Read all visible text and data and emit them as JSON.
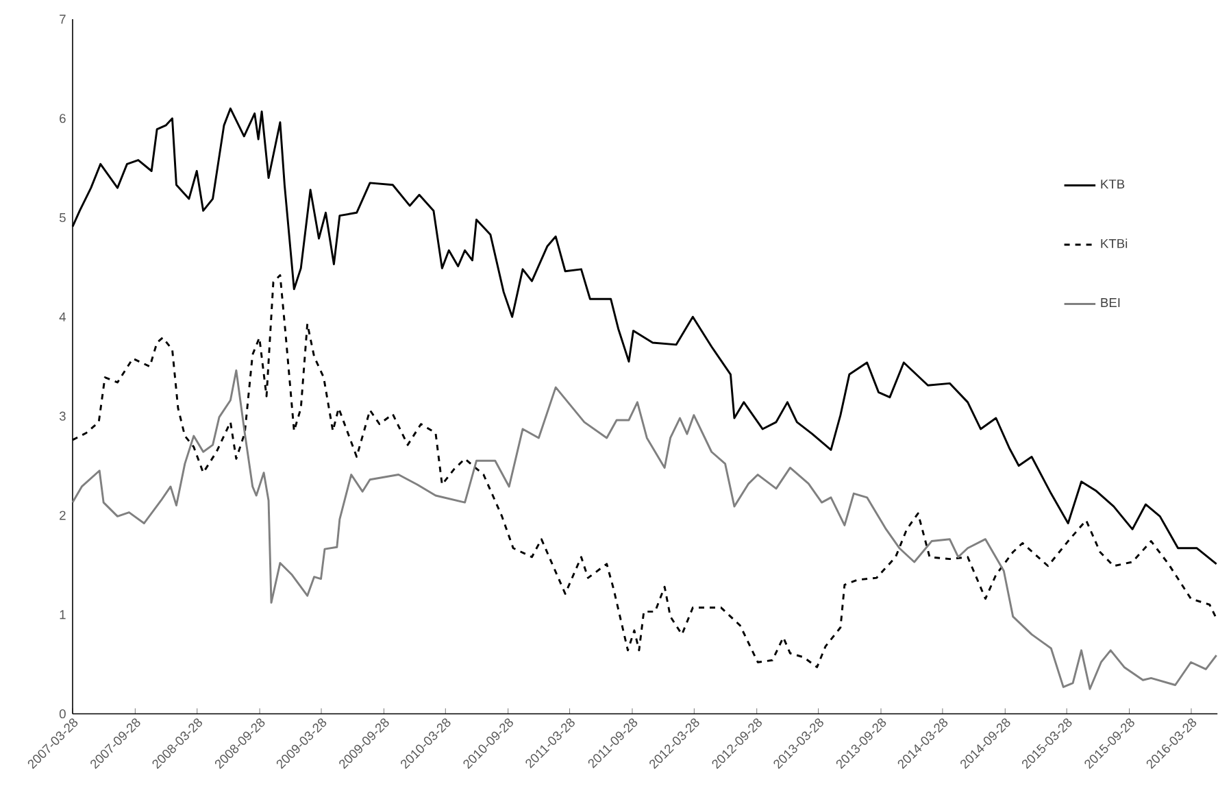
{
  "chart_data": {
    "type": "line",
    "xlim": [
      "2007-03-28",
      "2016-06-13"
    ],
    "ylim": [
      0,
      7
    ],
    "yticks": [
      0,
      1,
      2,
      3,
      4,
      5,
      6,
      7
    ],
    "xticks": [
      "2007-03-28",
      "2007-09-28",
      "2008-03-28",
      "2008-09-28",
      "2009-03-28",
      "2009-09-28",
      "2010-03-28",
      "2010-09-28",
      "2011-03-28",
      "2011-09-28",
      "2012-03-28",
      "2012-09-28",
      "2013-03-28",
      "2013-09-28",
      "2014-03-28",
      "2014-09-28",
      "2015-03-28",
      "2015-09-28",
      "2016-03-28"
    ],
    "legend": "top right",
    "grid": false,
    "marker": "none",
    "series": [
      {
        "name": "KTB",
        "color": "#000000",
        "line_style": "solid",
        "x": [
          "2007-03-28",
          "2007-04-18",
          "2007-05-21",
          "2007-06-18",
          "2007-08-07",
          "2007-09-04",
          "2007-10-07",
          "2007-11-15",
          "2007-12-01",
          "2007-12-27",
          "2008-01-15",
          "2008-01-27",
          "2008-03-04",
          "2008-03-27",
          "2008-04-15",
          "2008-05-13",
          "2008-06-15",
          "2008-07-04",
          "2008-08-13",
          "2008-09-13",
          "2008-09-24",
          "2008-10-04",
          "2008-10-24",
          "2008-11-27",
          "2008-12-10",
          "2009-01-07",
          "2009-01-27",
          "2009-02-24",
          "2009-03-21",
          "2009-04-10",
          "2009-05-04",
          "2009-05-21",
          "2009-07-10",
          "2009-08-18",
          "2009-10-24",
          "2009-12-13",
          "2010-01-10",
          "2010-02-21",
          "2010-03-18",
          "2010-04-07",
          "2010-05-04",
          "2010-05-24",
          "2010-06-15",
          "2010-06-27",
          "2010-08-07",
          "2010-09-15",
          "2010-10-10",
          "2010-11-10",
          "2010-12-07",
          "2011-01-21",
          "2011-02-15",
          "2011-03-15",
          "2011-05-01",
          "2011-05-27",
          "2011-07-27",
          "2011-08-18",
          "2011-09-18",
          "2011-10-01",
          "2011-11-27",
          "2012-02-04",
          "2012-03-24",
          "2012-05-18",
          "2012-07-13",
          "2012-07-24",
          "2012-08-21",
          "2012-10-15",
          "2012-11-24",
          "2012-12-27",
          "2013-01-24",
          "2013-03-10",
          "2013-05-04",
          "2013-06-01",
          "2013-06-27",
          "2013-08-18",
          "2013-09-21",
          "2013-10-24",
          "2013-12-04",
          "2014-02-13",
          "2014-04-18",
          "2014-06-10",
          "2014-07-18",
          "2014-09-01",
          "2014-10-10",
          "2014-11-07",
          "2014-12-15",
          "2015-02-10",
          "2015-04-01",
          "2015-05-10",
          "2015-06-21",
          "2015-08-13",
          "2015-10-07",
          "2015-11-15",
          "2015-12-27",
          "2016-02-18",
          "2016-04-13",
          "2016-06-10"
        ],
        "values": [
          4.91,
          5.07,
          5.3,
          5.54,
          5.3,
          5.54,
          5.58,
          5.47,
          5.89,
          5.93,
          6.0,
          5.33,
          5.19,
          5.47,
          5.07,
          5.19,
          5.93,
          6.1,
          5.82,
          6.05,
          5.79,
          6.07,
          5.4,
          5.96,
          5.33,
          4.28,
          4.49,
          5.28,
          4.79,
          5.05,
          4.53,
          5.02,
          5.05,
          5.35,
          5.33,
          5.12,
          5.23,
          5.07,
          4.49,
          4.67,
          4.51,
          4.67,
          4.57,
          4.98,
          4.83,
          4.25,
          4.0,
          4.48,
          4.36,
          4.71,
          4.81,
          4.46,
          4.48,
          4.18,
          4.18,
          3.88,
          3.55,
          3.86,
          3.74,
          3.72,
          4.0,
          3.7,
          3.42,
          2.98,
          3.14,
          2.87,
          2.94,
          3.14,
          2.94,
          2.82,
          2.66,
          3.01,
          3.42,
          3.54,
          3.24,
          3.19,
          3.54,
          3.31,
          3.33,
          3.14,
          2.87,
          2.98,
          2.68,
          2.5,
          2.59,
          2.22,
          1.92,
          2.34,
          2.25,
          2.09,
          1.86,
          2.11,
          1.99,
          1.67,
          1.67,
          1.51
        ]
      },
      {
        "name": "KTBi",
        "color": "#000000",
        "line_style": "dashed",
        "x": [
          "2007-03-28",
          "2007-05-07",
          "2007-06-13",
          "2007-07-01",
          "2007-08-07",
          "2007-09-21",
          "2007-11-10",
          "2007-12-01",
          "2007-12-18",
          "2008-01-15",
          "2008-02-01",
          "2008-02-21",
          "2008-03-18",
          "2008-04-15",
          "2008-05-24",
          "2008-07-04",
          "2008-07-21",
          "2008-08-15",
          "2008-09-07",
          "2008-09-27",
          "2008-10-18",
          "2008-11-07",
          "2008-11-27",
          "2008-12-13",
          "2009-01-07",
          "2009-01-27",
          "2009-02-15",
          "2009-03-07",
          "2009-04-04",
          "2009-05-01",
          "2009-05-18",
          "2009-07-10",
          "2009-08-18",
          "2009-09-15",
          "2009-10-24",
          "2009-12-07",
          "2010-01-15",
          "2010-02-27",
          "2010-03-18",
          "2010-04-21",
          "2010-05-24",
          "2010-07-18",
          "2010-09-10",
          "2010-10-13",
          "2010-12-07",
          "2011-01-04",
          "2011-03-15",
          "2011-05-01",
          "2011-05-21",
          "2011-07-15",
          "2011-08-04",
          "2011-09-15",
          "2011-10-04",
          "2011-10-18",
          "2011-11-01",
          "2011-12-04",
          "2012-01-01",
          "2012-01-18",
          "2012-02-21",
          "2012-03-24",
          "2012-06-15",
          "2012-08-10",
          "2012-10-01",
          "2012-11-13",
          "2012-12-15",
          "2013-01-04",
          "2013-02-13",
          "2013-03-24",
          "2013-04-18",
          "2013-06-01",
          "2013-06-13",
          "2013-07-21",
          "2013-09-15",
          "2013-11-10",
          "2013-12-13",
          "2014-01-15",
          "2014-02-18",
          "2014-04-18",
          "2014-06-10",
          "2014-08-01",
          "2014-09-01",
          "2014-10-21",
          "2014-11-18",
          "2015-02-01",
          "2015-04-01",
          "2015-05-24",
          "2015-07-04",
          "2015-08-13",
          "2015-10-07",
          "2015-12-01",
          "2016-01-21",
          "2016-02-24",
          "2016-03-27",
          "2016-05-21",
          "2016-06-10"
        ],
        "values": [
          2.76,
          2.83,
          2.94,
          3.39,
          3.34,
          3.58,
          3.5,
          3.74,
          3.79,
          3.67,
          3.08,
          2.8,
          2.69,
          2.43,
          2.64,
          2.94,
          2.57,
          2.83,
          3.62,
          3.79,
          3.2,
          4.35,
          4.42,
          3.83,
          2.85,
          3.08,
          3.93,
          3.6,
          3.39,
          2.85,
          3.08,
          2.59,
          3.06,
          2.92,
          3.02,
          2.71,
          2.92,
          2.83,
          2.31,
          2.46,
          2.57,
          2.41,
          1.99,
          1.67,
          1.58,
          1.76,
          1.21,
          1.58,
          1.37,
          1.51,
          1.26,
          0.64,
          0.84,
          0.64,
          1.03,
          1.03,
          1.28,
          0.98,
          0.8,
          1.07,
          1.07,
          0.89,
          0.52,
          0.54,
          0.77,
          0.61,
          0.57,
          0.47,
          0.68,
          0.87,
          1.3,
          1.35,
          1.37,
          1.58,
          1.86,
          2.02,
          1.58,
          1.56,
          1.58,
          1.16,
          1.4,
          1.63,
          1.72,
          1.49,
          1.74,
          1.95,
          1.63,
          1.49,
          1.53,
          1.74,
          1.51,
          1.33,
          1.16,
          1.1,
          0.96
        ]
      },
      {
        "name": "BEI",
        "color": "#808080",
        "line_style": "solid",
        "x": [
          "2007-03-28",
          "2007-04-24",
          "2007-06-15",
          "2007-06-27",
          "2007-08-07",
          "2007-09-10",
          "2007-10-24",
          "2007-12-13",
          "2008-01-10",
          "2008-01-27",
          "2008-02-21",
          "2008-03-18",
          "2008-04-15",
          "2008-05-13",
          "2008-06-01",
          "2008-07-04",
          "2008-07-21",
          "2008-08-15",
          "2008-09-07",
          "2008-09-18",
          "2008-10-10",
          "2008-10-24",
          "2008-11-01",
          "2008-11-27",
          "2009-01-01",
          "2009-02-15",
          "2009-03-07",
          "2009-03-27",
          "2009-04-07",
          "2009-05-13",
          "2009-05-21",
          "2009-06-24",
          "2009-07-27",
          "2009-08-18",
          "2009-11-10",
          "2010-01-04",
          "2010-02-27",
          "2010-05-24",
          "2010-06-27",
          "2010-08-21",
          "2010-10-01",
          "2010-11-10",
          "2010-12-27",
          "2011-02-15",
          "2011-05-10",
          "2011-07-15",
          "2011-08-13",
          "2011-09-18",
          "2011-10-13",
          "2011-11-10",
          "2012-01-01",
          "2012-01-18",
          "2012-02-15",
          "2012-03-07",
          "2012-03-27",
          "2012-05-18",
          "2012-06-27",
          "2012-07-24",
          "2012-09-04",
          "2012-10-01",
          "2012-11-24",
          "2013-01-04",
          "2013-02-27",
          "2013-04-07",
          "2013-05-04",
          "2013-06-13",
          "2013-07-10",
          "2013-08-18",
          "2013-10-13",
          "2013-11-21",
          "2014-01-04",
          "2014-02-24",
          "2014-04-18",
          "2014-05-13",
          "2014-06-10",
          "2014-08-01",
          "2014-09-24",
          "2014-10-21",
          "2014-12-15",
          "2015-02-10",
          "2015-03-18",
          "2015-04-15",
          "2015-05-10",
          "2015-06-04",
          "2015-07-07",
          "2015-08-04",
          "2015-09-13",
          "2015-11-07",
          "2015-12-01",
          "2016-02-10",
          "2016-03-27",
          "2016-05-10",
          "2016-06-10"
        ],
        "values": [
          2.13,
          2.29,
          2.45,
          2.13,
          1.99,
          2.03,
          1.92,
          2.15,
          2.29,
          2.1,
          2.52,
          2.8,
          2.64,
          2.71,
          2.99,
          3.16,
          3.46,
          2.83,
          2.29,
          2.2,
          2.43,
          2.15,
          1.12,
          1.52,
          1.4,
          1.19,
          1.38,
          1.36,
          1.66,
          1.68,
          1.96,
          2.41,
          2.24,
          2.36,
          2.41,
          2.31,
          2.2,
          2.13,
          2.55,
          2.55,
          2.29,
          2.87,
          2.78,
          3.29,
          2.94,
          2.78,
          2.96,
          2.96,
          3.14,
          2.78,
          2.48,
          2.78,
          2.98,
          2.82,
          3.01,
          2.64,
          2.52,
          2.09,
          2.32,
          2.41,
          2.27,
          2.48,
          2.32,
          2.13,
          2.18,
          1.9,
          2.22,
          2.18,
          1.86,
          1.67,
          1.53,
          1.74,
          1.76,
          1.58,
          1.67,
          1.76,
          1.44,
          0.98,
          0.8,
          0.66,
          0.27,
          0.31,
          0.64,
          0.25,
          0.52,
          0.64,
          0.47,
          0.34,
          0.36,
          0.29,
          0.52,
          0.45,
          0.59
        ]
      }
    ]
  }
}
